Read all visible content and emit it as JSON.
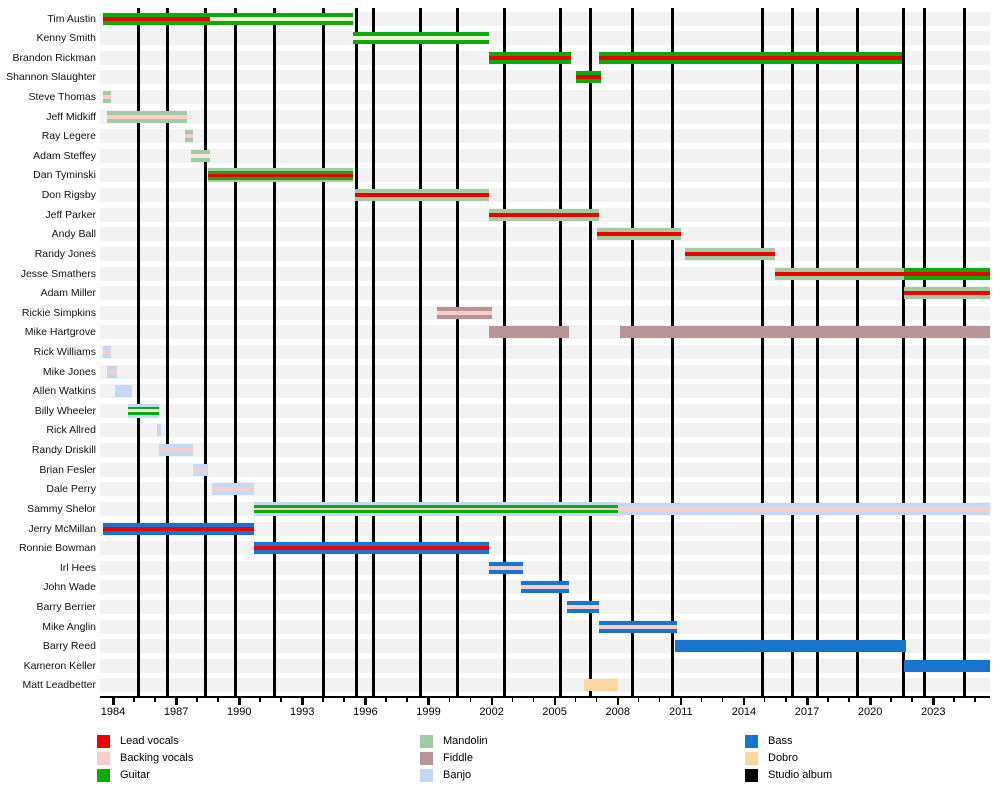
{
  "chart_data": {
    "type": "timeline",
    "title": "",
    "x_axis": {
      "min_year": 1983.38,
      "max_year": 2025.7,
      "major_tick_years": [
        1984,
        1987,
        1990,
        1993,
        1996,
        1999,
        2002,
        2005,
        2008,
        2011,
        2014,
        2017,
        2020,
        2023
      ],
      "minor_tick_every": 1,
      "minor_tick_start": 1984,
      "minor_tick_end": 2025
    },
    "colors": {
      "lead": "#ee0000",
      "backing": "#f6cece",
      "guitar": "#0cab0c",
      "mandolin": "#a3cba3",
      "fiddle": "#b59595",
      "banjo": "#c5d8f6",
      "bass": "#1874cd",
      "dobro": "#fbd7a2",
      "album": "#000000",
      "wheat": "#f3ecd9"
    },
    "album_line_years": [
      1985.2,
      1986.6,
      1988.4,
      1989.8,
      1991.7,
      1994.0,
      1995.6,
      1996.4,
      1998.6,
      2000.4,
      2002.6,
      2005.3,
      2006.7,
      2008.7,
      2010.6,
      2014.9,
      2016.3,
      2017.5,
      2019.4,
      2021.6,
      2022.6,
      2024.5
    ],
    "members": [
      {
        "name": "Tim Austin",
        "segments": [
          {
            "start": 1983.5,
            "end": 1988.6,
            "stripes": [
              "guitar",
              "lead",
              "guitar"
            ]
          },
          {
            "start": 1988.6,
            "end": 1995.4,
            "stripes": [
              "guitar",
              "wheat",
              "guitar"
            ]
          }
        ]
      },
      {
        "name": "Kenny Smith",
        "segments": [
          {
            "start": 1995.4,
            "end": 2001.9,
            "stripes": [
              "guitar",
              "wheat",
              "guitar"
            ]
          }
        ]
      },
      {
        "name": "Brandon Rickman",
        "segments": [
          {
            "start": 2001.9,
            "end": 2005.8,
            "stripes": [
              "guitar",
              "lead",
              "guitar"
            ]
          },
          {
            "start": 2007.1,
            "end": 2021.5,
            "stripes": [
              "guitar",
              "lead",
              "guitar"
            ]
          }
        ]
      },
      {
        "name": "Shannon Slaughter",
        "segments": [
          {
            "start": 2006.0,
            "end": 2007.2,
            "stripes": [
              "guitar",
              "lead",
              "guitar"
            ]
          }
        ]
      },
      {
        "name": "Steve Thomas",
        "segments": [
          {
            "start": 1983.5,
            "end": 1983.9,
            "stripes": [
              "mandolin",
              "backing",
              "mandolin"
            ]
          }
        ]
      },
      {
        "name": "Jeff Midkiff",
        "segments": [
          {
            "start": 1983.7,
            "end": 1987.5,
            "stripes": [
              "mandolin",
              "backing",
              "mandolin"
            ]
          }
        ]
      },
      {
        "name": "Ray Legere",
        "segments": [
          {
            "start": 1987.4,
            "end": 1987.8,
            "stripes": [
              "mandolin",
              "backing",
              "mandolin"
            ]
          }
        ]
      },
      {
        "name": "Adam Steffey",
        "segments": [
          {
            "start": 1987.7,
            "end": 1988.6,
            "stripes": [
              "mandolin",
              "wheat",
              "mandolin"
            ]
          }
        ]
      },
      {
        "name": "Dan Tyminski",
        "segments": [
          {
            "start": 1988.5,
            "end": 1995.4,
            "stripes": [
              "mandolin",
              "guitar",
              "lead",
              "guitar",
              "mandolin"
            ]
          }
        ]
      },
      {
        "name": "Don Rigsby",
        "segments": [
          {
            "start": 1995.5,
            "end": 2001.9,
            "stripes": [
              "mandolin",
              "lead",
              "mandolin"
            ]
          }
        ]
      },
      {
        "name": "Jeff Parker",
        "segments": [
          {
            "start": 2001.9,
            "end": 2007.1,
            "stripes": [
              "mandolin",
              "lead",
              "mandolin"
            ]
          }
        ]
      },
      {
        "name": "Andy Ball",
        "segments": [
          {
            "start": 2007.0,
            "end": 2011.0,
            "stripes": [
              "mandolin",
              "lead",
              "mandolin"
            ]
          }
        ]
      },
      {
        "name": "Randy Jones",
        "segments": [
          {
            "start": 2011.2,
            "end": 2015.5,
            "stripes": [
              "mandolin",
              "lead",
              "mandolin"
            ]
          }
        ]
      },
      {
        "name": "Jesse Smathers",
        "segments": [
          {
            "start": 2015.5,
            "end": 2021.6,
            "stripes": [
              "mandolin",
              "lead",
              "mandolin"
            ]
          },
          {
            "start": 2021.6,
            "end": 2025.7,
            "stripes": [
              "guitar",
              "lead",
              "guitar"
            ]
          }
        ]
      },
      {
        "name": "Adam Miller",
        "segments": [
          {
            "start": 2021.6,
            "end": 2025.7,
            "stripes": [
              "mandolin",
              "lead",
              "mandolin"
            ]
          }
        ]
      },
      {
        "name": "Rickie Simpkins",
        "segments": [
          {
            "start": 1999.4,
            "end": 2002.0,
            "stripes": [
              "fiddle",
              "backing",
              "fiddle"
            ]
          }
        ]
      },
      {
        "name": "Mike Hartgrove",
        "segments": [
          {
            "start": 2001.9,
            "end": 2005.7,
            "stripes": [
              "fiddle"
            ]
          },
          {
            "start": 2008.1,
            "end": 2025.7,
            "stripes": [
              "fiddle"
            ]
          }
        ]
      },
      {
        "name": "Rick Williams",
        "segments": [
          {
            "start": 1983.5,
            "end": 1983.9,
            "stripes": [
              "banjo",
              "backing",
              "banjo"
            ]
          }
        ]
      },
      {
        "name": "Mike Jones",
        "segments": [
          {
            "start": 1983.7,
            "end": 1984.2,
            "stripes": [
              "banjo",
              "backing",
              "banjo"
            ]
          }
        ]
      },
      {
        "name": "Allen Watkins",
        "segments": [
          {
            "start": 1984.1,
            "end": 1984.9,
            "stripes": [
              "banjo"
            ]
          }
        ]
      },
      {
        "name": "Billy Wheeler",
        "segments": [
          {
            "start": 1984.7,
            "end": 1986.2,
            "stripes": [
              "banjo",
              "guitar",
              "wheat",
              "guitar",
              "banjo"
            ]
          }
        ]
      },
      {
        "name": "Rick Allred",
        "segments": [
          {
            "start": 1986.1,
            "end": 1986.3,
            "stripes": [
              "banjo"
            ]
          }
        ]
      },
      {
        "name": "Randy Driskill",
        "segments": [
          {
            "start": 1986.2,
            "end": 1987.8,
            "stripes": [
              "banjo",
              "backing",
              "banjo"
            ]
          }
        ]
      },
      {
        "name": "Brian Fesler",
        "segments": [
          {
            "start": 1987.8,
            "end": 1988.5,
            "stripes": [
              "banjo",
              "backing",
              "banjo"
            ]
          }
        ]
      },
      {
        "name": "Dale Perry",
        "segments": [
          {
            "start": 1988.7,
            "end": 1990.7,
            "stripes": [
              "banjo",
              "backing",
              "banjo"
            ]
          }
        ]
      },
      {
        "name": "Sammy Shelor",
        "segments": [
          {
            "start": 1990.7,
            "end": 2008.0,
            "stripes": [
              "banjo",
              "guitar",
              "backing",
              "guitar",
              "banjo"
            ]
          },
          {
            "start": 2008.0,
            "end": 2025.7,
            "stripes": [
              "banjo",
              "backing",
              "banjo"
            ]
          }
        ]
      },
      {
        "name": "Jerry McMillan",
        "segments": [
          {
            "start": 1983.5,
            "end": 1990.7,
            "stripes": [
              "bass",
              "lead",
              "bass"
            ]
          }
        ]
      },
      {
        "name": "Ronnie Bowman",
        "segments": [
          {
            "start": 1990.7,
            "end": 2001.9,
            "stripes": [
              "bass",
              "lead",
              "bass"
            ]
          }
        ]
      },
      {
        "name": "Irl Hees",
        "segments": [
          {
            "start": 2001.9,
            "end": 2003.5,
            "stripes": [
              "bass",
              "backing",
              "bass"
            ]
          }
        ]
      },
      {
        "name": "John Wade",
        "segments": [
          {
            "start": 2003.4,
            "end": 2005.7,
            "stripes": [
              "bass",
              "backing",
              "bass"
            ]
          }
        ]
      },
      {
        "name": "Barry Berrier",
        "segments": [
          {
            "start": 2005.6,
            "end": 2007.1,
            "stripes": [
              "bass",
              "backing",
              "bass"
            ]
          }
        ]
      },
      {
        "name": "Mike Anglin",
        "segments": [
          {
            "start": 2007.1,
            "end": 2010.8,
            "stripes": [
              "bass",
              "backing",
              "bass"
            ]
          }
        ]
      },
      {
        "name": "Barry Reed",
        "segments": [
          {
            "start": 2010.7,
            "end": 2021.7,
            "stripes": [
              "bass"
            ]
          }
        ]
      },
      {
        "name": "Kameron Keller",
        "segments": [
          {
            "start": 2021.6,
            "end": 2025.7,
            "stripes": [
              "bass"
            ]
          }
        ]
      },
      {
        "name": "Matt Leadbetter",
        "segments": [
          {
            "start": 2006.4,
            "end": 2008.0,
            "stripes": [
              "dobro"
            ]
          }
        ]
      }
    ],
    "legend": {
      "columns": [
        {
          "items": [
            {
              "label": "Lead vocals",
              "role": "lead"
            },
            {
              "label": "Backing vocals",
              "role": "backing"
            },
            {
              "label": "Guitar",
              "role": "guitar"
            }
          ]
        },
        {
          "items": [
            {
              "label": "Mandolin",
              "role": "mandolin"
            },
            {
              "label": "Fiddle",
              "role": "fiddle"
            },
            {
              "label": "Banjo",
              "role": "banjo"
            }
          ]
        },
        {
          "items": [
            {
              "label": "Bass",
              "role": "bass"
            },
            {
              "label": "Dobro",
              "role": "dobro"
            },
            {
              "label": "Studio album",
              "role": "album"
            }
          ]
        }
      ]
    }
  }
}
